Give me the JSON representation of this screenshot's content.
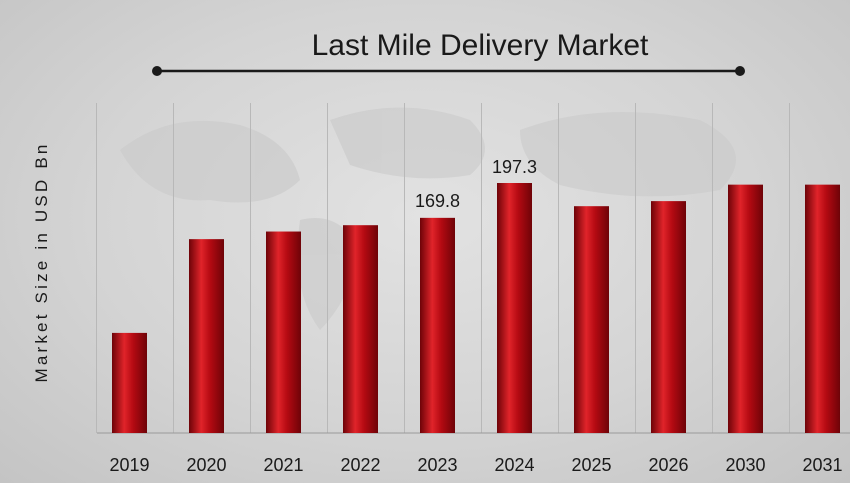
{
  "chart_data": {
    "type": "bar",
    "title": "Last Mile Delivery Market",
    "xlabel": "",
    "ylabel": "Market Size in USD Bn",
    "categories": [
      "2019",
      "2020",
      "2021",
      "2022",
      "2023",
      "2024",
      "2025",
      "2026",
      "2030",
      "2031"
    ],
    "values": [
      79,
      153,
      159,
      164,
      169.8,
      197.3,
      179,
      183,
      196,
      196
    ],
    "data_labels": [
      {
        "index": 4,
        "text": "169.8"
      },
      {
        "index": 5,
        "text": "197.3"
      }
    ],
    "ylim": [
      0,
      230
    ],
    "grid": "vertical",
    "legend": "none",
    "colors": {
      "bar": "#b50a12",
      "bar_dark": "#6e0308",
      "bar_light": "#e0242a",
      "text": "#1a1a1a",
      "grid": "#b8b8b8"
    }
  }
}
